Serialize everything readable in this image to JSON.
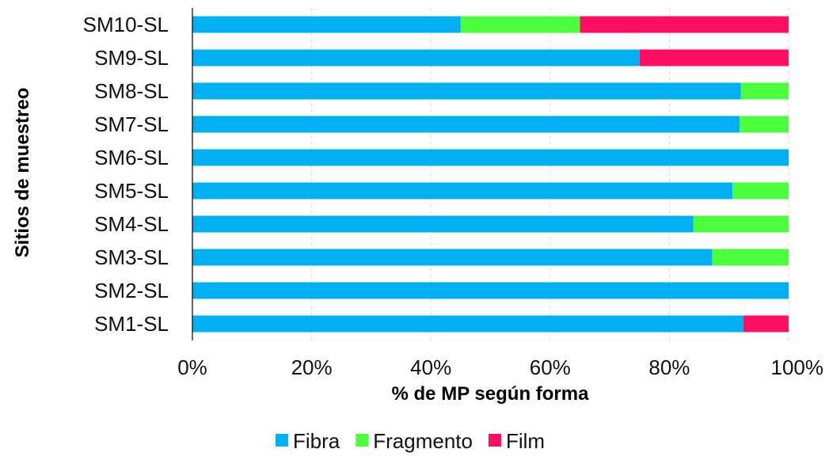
{
  "chart_data": {
    "type": "bar",
    "orientation": "horizontal",
    "stacked": true,
    "categories": [
      "SM10-SL",
      "SM9-SL",
      "SM8-SL",
      "SM7-SL",
      "SM6-SL",
      "SM5-SL",
      "SM4-SL",
      "SM3-SL",
      "SM2-SL",
      "SM1-SL"
    ],
    "series": [
      {
        "name": "Fibra",
        "color": "#00b0f0",
        "values": [
          45,
          75,
          92,
          91.8,
          100,
          90.6,
          84,
          87.2,
          100,
          92.4
        ]
      },
      {
        "name": "Fragmento",
        "color": "#4cff3c",
        "values": [
          20,
          0,
          8,
          8.2,
          0,
          9.4,
          16,
          12.8,
          0,
          0
        ]
      },
      {
        "name": "Film",
        "color": "#ff0d63",
        "values": [
          35,
          25,
          0,
          0,
          0,
          0,
          0,
          0,
          0,
          7.6
        ]
      }
    ],
    "xlim": [
      0,
      100
    ],
    "x_ticks": [
      "0%",
      "20%",
      "40%",
      "60%",
      "80%",
      "100%"
    ],
    "xlabel": "% de MP según forma",
    "ylabel": "Sitios de muestreo",
    "grid": true,
    "legend": "bottom"
  }
}
